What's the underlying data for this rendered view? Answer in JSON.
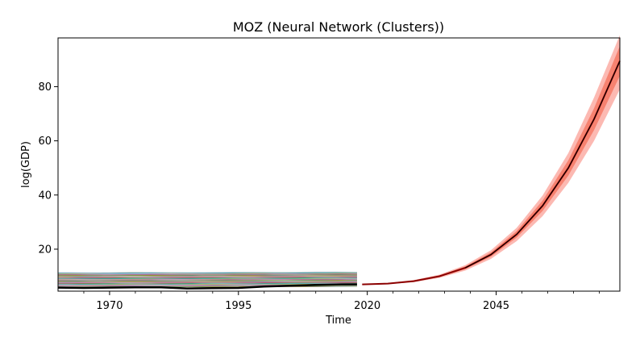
{
  "chart_data": {
    "type": "line",
    "title": "MOZ (Neural Network (Clusters))",
    "xlabel": "Time",
    "ylabel": "log(GDP)",
    "xlim": [
      1960,
      2069
    ],
    "ylim": [
      4.5,
      98
    ],
    "x_ticks": [
      1970,
      1995,
      2020,
      2045
    ],
    "y_ticks": [
      20,
      40,
      60,
      80
    ],
    "grid": false,
    "legend": "none",
    "series_colors": [
      "#1f77b4",
      "#ff7f0e",
      "#2ca02c",
      "#d62728",
      "#9467bd",
      "#8c564b",
      "#e377c2",
      "#7f7f7f",
      "#bcbd22",
      "#17becf"
    ],
    "historical_background": {
      "x_range": [
        1960,
        2018
      ],
      "band_values": [
        6.0,
        6.5,
        7.0,
        7.4,
        7.8,
        8.2,
        8.6,
        9.0,
        9.4,
        9.8,
        10.2,
        10.6,
        11.0
      ],
      "bump": {
        "x": 1975,
        "value": 11.4
      }
    },
    "historical_target": {
      "name": "MOZ",
      "color": "#000000",
      "x": [
        1960,
        1965,
        1970,
        1975,
        1980,
        1985,
        1990,
        1995,
        2000,
        2005,
        2010,
        2015,
        2018
      ],
      "y": [
        5.8,
        5.7,
        5.8,
        5.9,
        5.9,
        5.5,
        5.6,
        5.7,
        6.2,
        6.5,
        6.8,
        7.0,
        7.0
      ]
    },
    "forecast": {
      "color": "#8b0000",
      "band_color": "#fa8072",
      "x": [
        2019,
        2024,
        2029,
        2034,
        2039,
        2044,
        2049,
        2054,
        2059,
        2064,
        2069
      ],
      "mean": [
        7.0,
        7.3,
        8.2,
        10.0,
        13.1,
        18.0,
        25.5,
        36.0,
        50.0,
        68.0,
        89.5
      ],
      "inner_lower": [
        7.0,
        7.2,
        8.0,
        9.7,
        12.6,
        17.2,
        24.3,
        34.1,
        47.2,
        64.0,
        84.0
      ],
      "inner_upper": [
        7.0,
        7.4,
        8.4,
        10.3,
        13.6,
        18.8,
        26.7,
        37.9,
        52.8,
        72.0,
        95.0
      ],
      "outer_lower": [
        7.0,
        7.1,
        7.8,
        9.4,
        12.1,
        16.4,
        23.0,
        32.2,
        44.5,
        60.0,
        79.0
      ],
      "outer_upper": [
        7.0,
        7.5,
        8.6,
        10.6,
        14.1,
        19.6,
        27.9,
        39.8,
        55.5,
        76.0,
        99.0
      ]
    }
  }
}
